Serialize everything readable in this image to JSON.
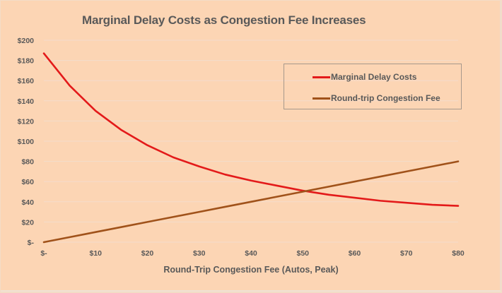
{
  "chart_data": {
    "type": "line",
    "title": "Marginal Delay Costs as Congestion Fee Increases",
    "xlabel": "Round-Trip Congestion Fee (Autos, Peak)",
    "ylabel": "",
    "x": [
      0,
      5,
      10,
      15,
      20,
      25,
      30,
      35,
      40,
      45,
      50,
      55,
      60,
      65,
      70,
      75,
      80
    ],
    "xlim": [
      0,
      80
    ],
    "ylim": [
      0,
      200
    ],
    "x_ticks": [
      0,
      10,
      20,
      30,
      40,
      50,
      60,
      70,
      80
    ],
    "x_tick_labels": [
      "$-",
      "$10",
      "$20",
      "$30",
      "$40",
      "$50",
      "$60",
      "$70",
      "$80"
    ],
    "y_ticks": [
      0,
      20,
      40,
      60,
      80,
      100,
      120,
      140,
      160,
      180,
      200
    ],
    "y_tick_labels": [
      "$-",
      "$20",
      "$40",
      "$60",
      "$80",
      "$100",
      "$120",
      "$140",
      "$160",
      "$180",
      "$200"
    ],
    "grid": true,
    "legend_position": "top-right",
    "series": [
      {
        "name": "Marginal Delay Costs",
        "color": "#e31a1a",
        "values": [
          187,
          155,
          130,
          111,
          96,
          84,
          75,
          67,
          61,
          56,
          51,
          47,
          44,
          41,
          39,
          37,
          36
        ]
      },
      {
        "name": "Round-trip Congestion Fee",
        "color": "#a0521a",
        "values": [
          0,
          5,
          10,
          15,
          20,
          25,
          30,
          35,
          40,
          45,
          50,
          55,
          60,
          65,
          70,
          75,
          80
        ]
      }
    ]
  }
}
